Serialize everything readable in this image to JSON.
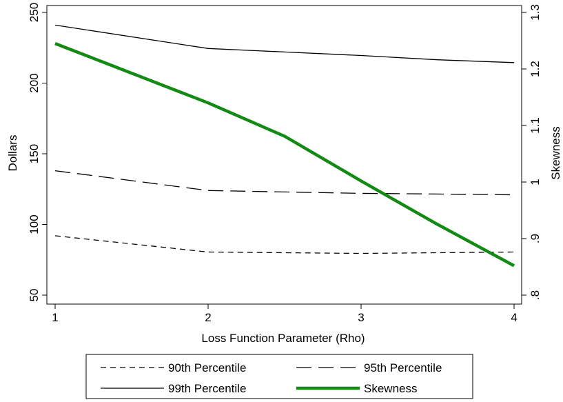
{
  "chart_data": {
    "type": "line",
    "xlabel": "Loss Function Parameter (Rho)",
    "ylabel_left": "Dollars",
    "ylabel_right": "Skewness",
    "xlim": [
      1,
      4
    ],
    "ylim_left": [
      50,
      250
    ],
    "ylim_right": [
      0.8,
      1.3
    ],
    "x_ticks": [
      1,
      2,
      3,
      4
    ],
    "x_tick_labels": [
      "1",
      "2",
      "3",
      "4"
    ],
    "y_left_ticks": [
      50,
      100,
      150,
      200,
      250
    ],
    "y_left_tick_labels": [
      "50",
      "100",
      "150",
      "200",
      "250"
    ],
    "y_right_ticks": [
      0.8,
      0.9,
      1.0,
      1.1,
      1.2,
      1.3
    ],
    "y_right_tick_labels": [
      ".8",
      ".9",
      "1",
      "1.1",
      "1.2",
      "1.3"
    ],
    "grid": false,
    "legend_position": "bottom",
    "series": [
      {
        "name": "90th Percentile",
        "axis": "left",
        "style": "short-dash",
        "color": "#000000",
        "x": [
          1,
          2,
          2.5,
          3,
          3.5,
          4
        ],
        "values": [
          92,
          80.5,
          80,
          79.5,
          80,
          80.5
        ]
      },
      {
        "name": "95th Percentile",
        "axis": "left",
        "style": "long-dash",
        "color": "#000000",
        "x": [
          1,
          2,
          2.5,
          3,
          3.5,
          4
        ],
        "values": [
          138,
          124,
          123,
          122,
          121.5,
          121
        ]
      },
      {
        "name": "99th Percentile",
        "axis": "left",
        "style": "solid",
        "color": "#000000",
        "x": [
          1,
          2,
          2.5,
          3,
          3.5,
          4
        ],
        "values": [
          241,
          224.5,
          222,
          219.5,
          216.5,
          214.5
        ]
      },
      {
        "name": "Skewness",
        "axis": "right",
        "style": "thick-solid",
        "color": "#138a13",
        "x": [
          1,
          2,
          2.5,
          3,
          3.5,
          4
        ],
        "values": [
          1.245,
          1.14,
          1.081,
          1.002,
          0.925,
          0.852
        ]
      }
    ]
  }
}
